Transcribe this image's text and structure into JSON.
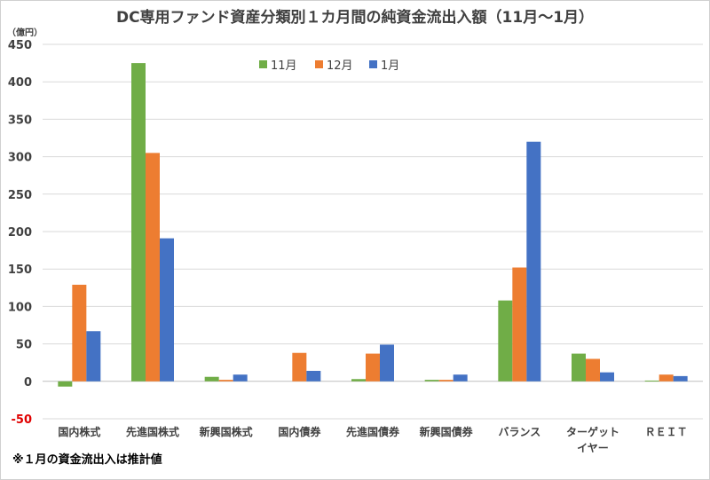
{
  "chart_data": {
    "type": "bar",
    "title": "DC専用ファンド資産分類別１カ月間の純資金流出入額（11月〜1月）",
    "unit_label": "（億円）",
    "ylim": [
      -50,
      450
    ],
    "yticks": [
      -50,
      0,
      50,
      100,
      150,
      200,
      250,
      300,
      350,
      400,
      450
    ],
    "grid": true,
    "legend_position": "top-center",
    "categories": [
      [
        "国内株式"
      ],
      [
        "先進国株式"
      ],
      [
        "新興国株式"
      ],
      [
        "国内債券"
      ],
      [
        "先進国債券"
      ],
      [
        "新興国債券"
      ],
      [
        "バランス"
      ],
      [
        "ターゲット",
        "イヤー"
      ],
      [
        "ＲＥＩＴ"
      ]
    ],
    "series": [
      {
        "name": "11月",
        "color": "#70ad47",
        "values": [
          -7,
          425,
          6,
          0,
          3,
          2,
          108,
          37,
          1
        ]
      },
      {
        "name": "12月",
        "color": "#ed7d31",
        "values": [
          129,
          305,
          2,
          38,
          37,
          2,
          152,
          30,
          9
        ]
      },
      {
        "name": "1月",
        "color": "#4472c4",
        "values": [
          67,
          191,
          9,
          14,
          49,
          9,
          320,
          12,
          7
        ]
      }
    ],
    "note": "※１月の資金流出入は推計値"
  }
}
